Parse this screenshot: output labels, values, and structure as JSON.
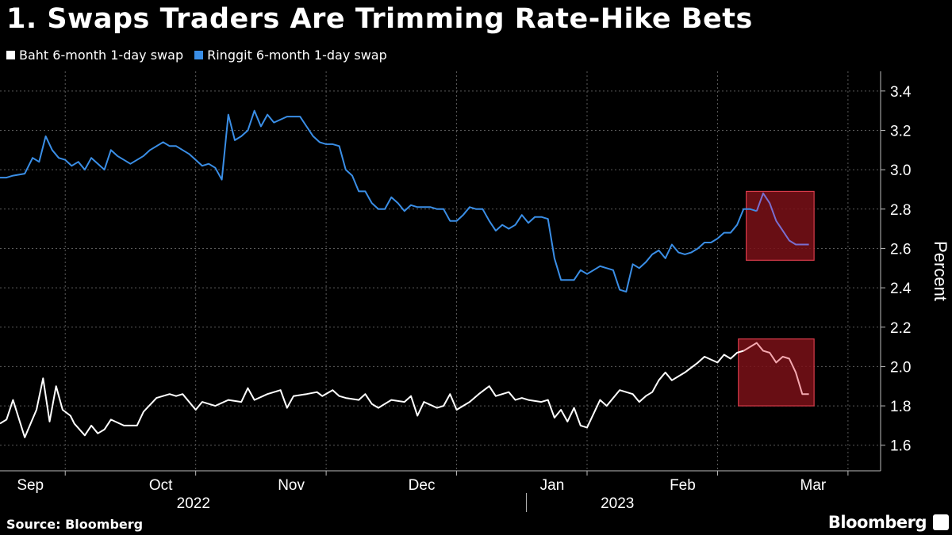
{
  "chart_data": {
    "type": "line",
    "title": "1. Swaps Traders Are Trimming Rate-Hike Bets",
    "ylabel": "Percent",
    "ylim": [
      1.47,
      3.5
    ],
    "yticks": [
      "3.4",
      "3.2",
      "3.0",
      "2.8",
      "2.6",
      "2.4",
      "2.2",
      "2.0",
      "1.8",
      "1.6"
    ],
    "ytick_values": [
      3.4,
      3.2,
      3.0,
      2.8,
      2.6,
      2.4,
      2.2,
      2.0,
      1.8,
      1.6
    ],
    "grid": true,
    "legend_position": "top-left",
    "month_labels": [
      "Sep",
      "Oct",
      "Nov",
      "Dec",
      "Jan",
      "Feb",
      "Mar"
    ],
    "month_positions": [
      0.5,
      1.5,
      2.5,
      3.5,
      4.5,
      5.5,
      6.5
    ],
    "month_boundaries": [
      0.5,
      1.5,
      2.5,
      3.5,
      4.5,
      5.5,
      6.5
    ],
    "years": [
      "2022",
      "2023"
    ],
    "year_positions": [
      1.75,
      5.0
    ],
    "year_divider": 3.5,
    "x_range": [
      0,
      6.75
    ],
    "highlights": [
      {
        "x0": 5.72,
        "x1": 6.24,
        "y0": 2.54,
        "y1": 2.89,
        "color": "#7a1018",
        "border": "#d93c4b"
      },
      {
        "x0": 5.66,
        "x1": 6.24,
        "y0": 1.8,
        "y1": 2.14,
        "color": "#7a1018",
        "border": "#d93c4b"
      }
    ],
    "series": [
      {
        "name": "Baht 6-month 1-day swap",
        "color": "#ffffff",
        "tail_color": "#f4a9b0",
        "tail_start": 5.7,
        "x": [
          0.0,
          0.05,
          0.1,
          0.19,
          0.28,
          0.33,
          0.38,
          0.43,
          0.48,
          0.54,
          0.57,
          0.65,
          0.7,
          0.75,
          0.8,
          0.85,
          0.95,
          1.0,
          1.05,
          1.1,
          1.2,
          1.3,
          1.35,
          1.4,
          1.5,
          1.55,
          1.65,
          1.75,
          1.85,
          1.9,
          1.95,
          2.05,
          2.15,
          2.2,
          2.25,
          2.35,
          2.43,
          2.47,
          2.55,
          2.6,
          2.65,
          2.75,
          2.8,
          2.85,
          2.9,
          3.0,
          3.1,
          3.15,
          3.2,
          3.25,
          3.35,
          3.4,
          3.45,
          3.5,
          3.6,
          3.67,
          3.75,
          3.8,
          3.9,
          3.95,
          4.0,
          4.05,
          4.15,
          4.2,
          4.25,
          4.3,
          4.35,
          4.4,
          4.45,
          4.5,
          4.6,
          4.65,
          4.75,
          4.85,
          4.9,
          4.95,
          5.0,
          5.05,
          5.1,
          5.15,
          5.25,
          5.35,
          5.4,
          5.5,
          5.55,
          5.6,
          5.65,
          5.7,
          5.8,
          5.85,
          5.9,
          5.95,
          6.0,
          6.05,
          6.1,
          6.15,
          6.2
        ],
        "y": [
          1.71,
          1.73,
          1.83,
          1.64,
          1.78,
          1.94,
          1.72,
          1.9,
          1.78,
          1.75,
          1.71,
          1.65,
          1.7,
          1.66,
          1.68,
          1.73,
          1.7,
          1.7,
          1.7,
          1.77,
          1.84,
          1.86,
          1.85,
          1.86,
          1.78,
          1.82,
          1.8,
          1.83,
          1.82,
          1.89,
          1.83,
          1.86,
          1.88,
          1.79,
          1.85,
          1.86,
          1.87,
          1.85,
          1.88,
          1.85,
          1.84,
          1.83,
          1.86,
          1.81,
          1.79,
          1.83,
          1.82,
          1.85,
          1.75,
          1.82,
          1.79,
          1.8,
          1.86,
          1.78,
          1.82,
          1.86,
          1.9,
          1.85,
          1.87,
          1.83,
          1.84,
          1.83,
          1.82,
          1.83,
          1.74,
          1.78,
          1.72,
          1.79,
          1.7,
          1.69,
          1.83,
          1.8,
          1.88,
          1.86,
          1.82,
          1.85,
          1.87,
          1.93,
          1.97,
          1.93,
          1.97,
          2.02,
          2.05,
          2.02,
          2.06,
          2.04,
          2.07,
          2.08,
          2.12,
          2.08,
          2.07,
          2.02,
          2.05,
          2.04,
          1.97,
          1.86,
          1.86
        ]
      },
      {
        "name": "Ringgit 6-month 1-day swap",
        "color": "#3a8ee6",
        "tail_color": "#7a6fd0",
        "tail_start": 5.8,
        "x": [
          0.0,
          0.05,
          0.1,
          0.19,
          0.25,
          0.3,
          0.35,
          0.4,
          0.45,
          0.5,
          0.55,
          0.6,
          0.65,
          0.7,
          0.8,
          0.85,
          0.9,
          0.95,
          1.0,
          1.1,
          1.15,
          1.25,
          1.3,
          1.35,
          1.4,
          1.45,
          1.5,
          1.55,
          1.6,
          1.65,
          1.7,
          1.75,
          1.8,
          1.85,
          1.9,
          1.95,
          2.0,
          2.05,
          2.1,
          2.2,
          2.25,
          2.3,
          2.35,
          2.4,
          2.45,
          2.5,
          2.55,
          2.6,
          2.65,
          2.7,
          2.75,
          2.8,
          2.85,
          2.9,
          2.95,
          3.0,
          3.05,
          3.1,
          3.15,
          3.2,
          3.25,
          3.3,
          3.35,
          3.4,
          3.45,
          3.5,
          3.55,
          3.6,
          3.65,
          3.7,
          3.75,
          3.8,
          3.85,
          3.9,
          3.95,
          4.0,
          4.05,
          4.1,
          4.15,
          4.2,
          4.25,
          4.3,
          4.35,
          4.4,
          4.45,
          4.5,
          4.55,
          4.6,
          4.65,
          4.7,
          4.75,
          4.8,
          4.85,
          4.9,
          4.95,
          5.0,
          5.05,
          5.1,
          5.15,
          5.2,
          5.25,
          5.3,
          5.35,
          5.4,
          5.45,
          5.5,
          5.55,
          5.6,
          5.65,
          5.7,
          5.75,
          5.8,
          5.85,
          5.9,
          5.95,
          6.0,
          6.05,
          6.1,
          6.15,
          6.2
        ],
        "y": [
          2.96,
          2.96,
          2.97,
          2.98,
          3.06,
          3.04,
          3.17,
          3.1,
          3.06,
          3.05,
          3.02,
          3.04,
          3.0,
          3.06,
          3.0,
          3.1,
          3.07,
          3.05,
          3.03,
          3.07,
          3.1,
          3.14,
          3.12,
          3.12,
          3.1,
          3.08,
          3.05,
          3.02,
          3.03,
          3.01,
          2.95,
          3.28,
          3.15,
          3.17,
          3.2,
          3.3,
          3.22,
          3.28,
          3.24,
          3.27,
          3.27,
          3.27,
          3.22,
          3.17,
          3.14,
          3.13,
          3.13,
          3.12,
          3.0,
          2.97,
          2.89,
          2.89,
          2.83,
          2.8,
          2.8,
          2.86,
          2.83,
          2.79,
          2.82,
          2.81,
          2.81,
          2.81,
          2.8,
          2.8,
          2.74,
          2.74,
          2.77,
          2.81,
          2.8,
          2.8,
          2.74,
          2.69,
          2.72,
          2.7,
          2.72,
          2.77,
          2.73,
          2.76,
          2.76,
          2.75,
          2.55,
          2.44,
          2.44,
          2.44,
          2.49,
          2.47,
          2.49,
          2.51,
          2.5,
          2.49,
          2.39,
          2.38,
          2.52,
          2.5,
          2.53,
          2.57,
          2.59,
          2.55,
          2.62,
          2.58,
          2.57,
          2.58,
          2.6,
          2.63,
          2.63,
          2.65,
          2.68,
          2.68,
          2.72,
          2.8,
          2.8,
          2.79,
          2.88,
          2.83,
          2.74,
          2.69,
          2.64,
          2.62,
          2.62,
          2.62
        ]
      }
    ]
  },
  "footer": {
    "source": "Source: Bloomberg",
    "brand": "Bloomberg"
  }
}
